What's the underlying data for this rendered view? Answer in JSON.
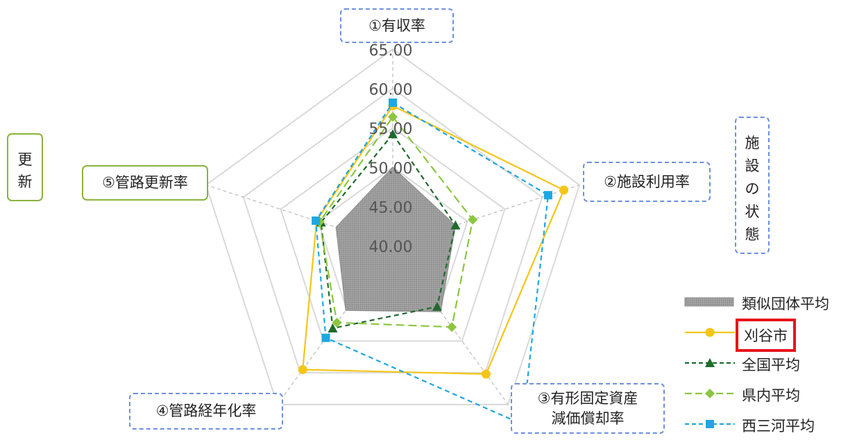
{
  "chart_data": {
    "type": "radar",
    "axes": [
      "①有収率",
      "②施設利用率",
      "③有形固定資産\n減価償却率",
      "④管路経年化率",
      "⑤管路更新率"
    ],
    "r_ticks": [
      "40.00",
      "45.00",
      "50.00",
      "55.00",
      "60.00",
      "65.00"
    ],
    "r_range": [
      40,
      65
    ],
    "grid": true,
    "legend_position": "bottom-right",
    "series": [
      {
        "name": "類似団体平均",
        "style": "area-hatched",
        "color": "#8c8c8c",
        "values": [
          50.0,
          48.4,
          50.4,
          50.2,
          47.6
        ]
      },
      {
        "name": "刈谷市",
        "style": "solid-circle",
        "color": "#f5c518",
        "values": [
          57.8,
          62.9,
          60.2,
          59.5,
          50.2
        ]
      },
      {
        "name": "全国平均",
        "style": "dashed-triangle",
        "color": "#1e6b2c",
        "values": [
          54.2,
          48.4,
          49.6,
          53.0,
          49.6
        ]
      },
      {
        "name": "県内平均",
        "style": "dashed-diamond",
        "color": "#8cc63f",
        "values": [
          56.4,
          50.7,
          52.8,
          52.1,
          49.8
        ]
      },
      {
        "name": "西三河平均",
        "style": "dashed-square",
        "color": "#1ea7e1",
        "values": [
          58.2,
          60.8,
          68.1,
          54.5,
          50.3
        ]
      }
    ],
    "highlight_series": "刈谷市"
  },
  "labels": {
    "axis1": "①有収率",
    "axis2": "②施設利用率",
    "axis3_line1": "③有形固定資産",
    "axis3_line2": "減価償却率",
    "axis4": "④管路経年化率",
    "axis5": "⑤管路更新率",
    "side_left": "更新",
    "side_right": "施設の状態"
  }
}
